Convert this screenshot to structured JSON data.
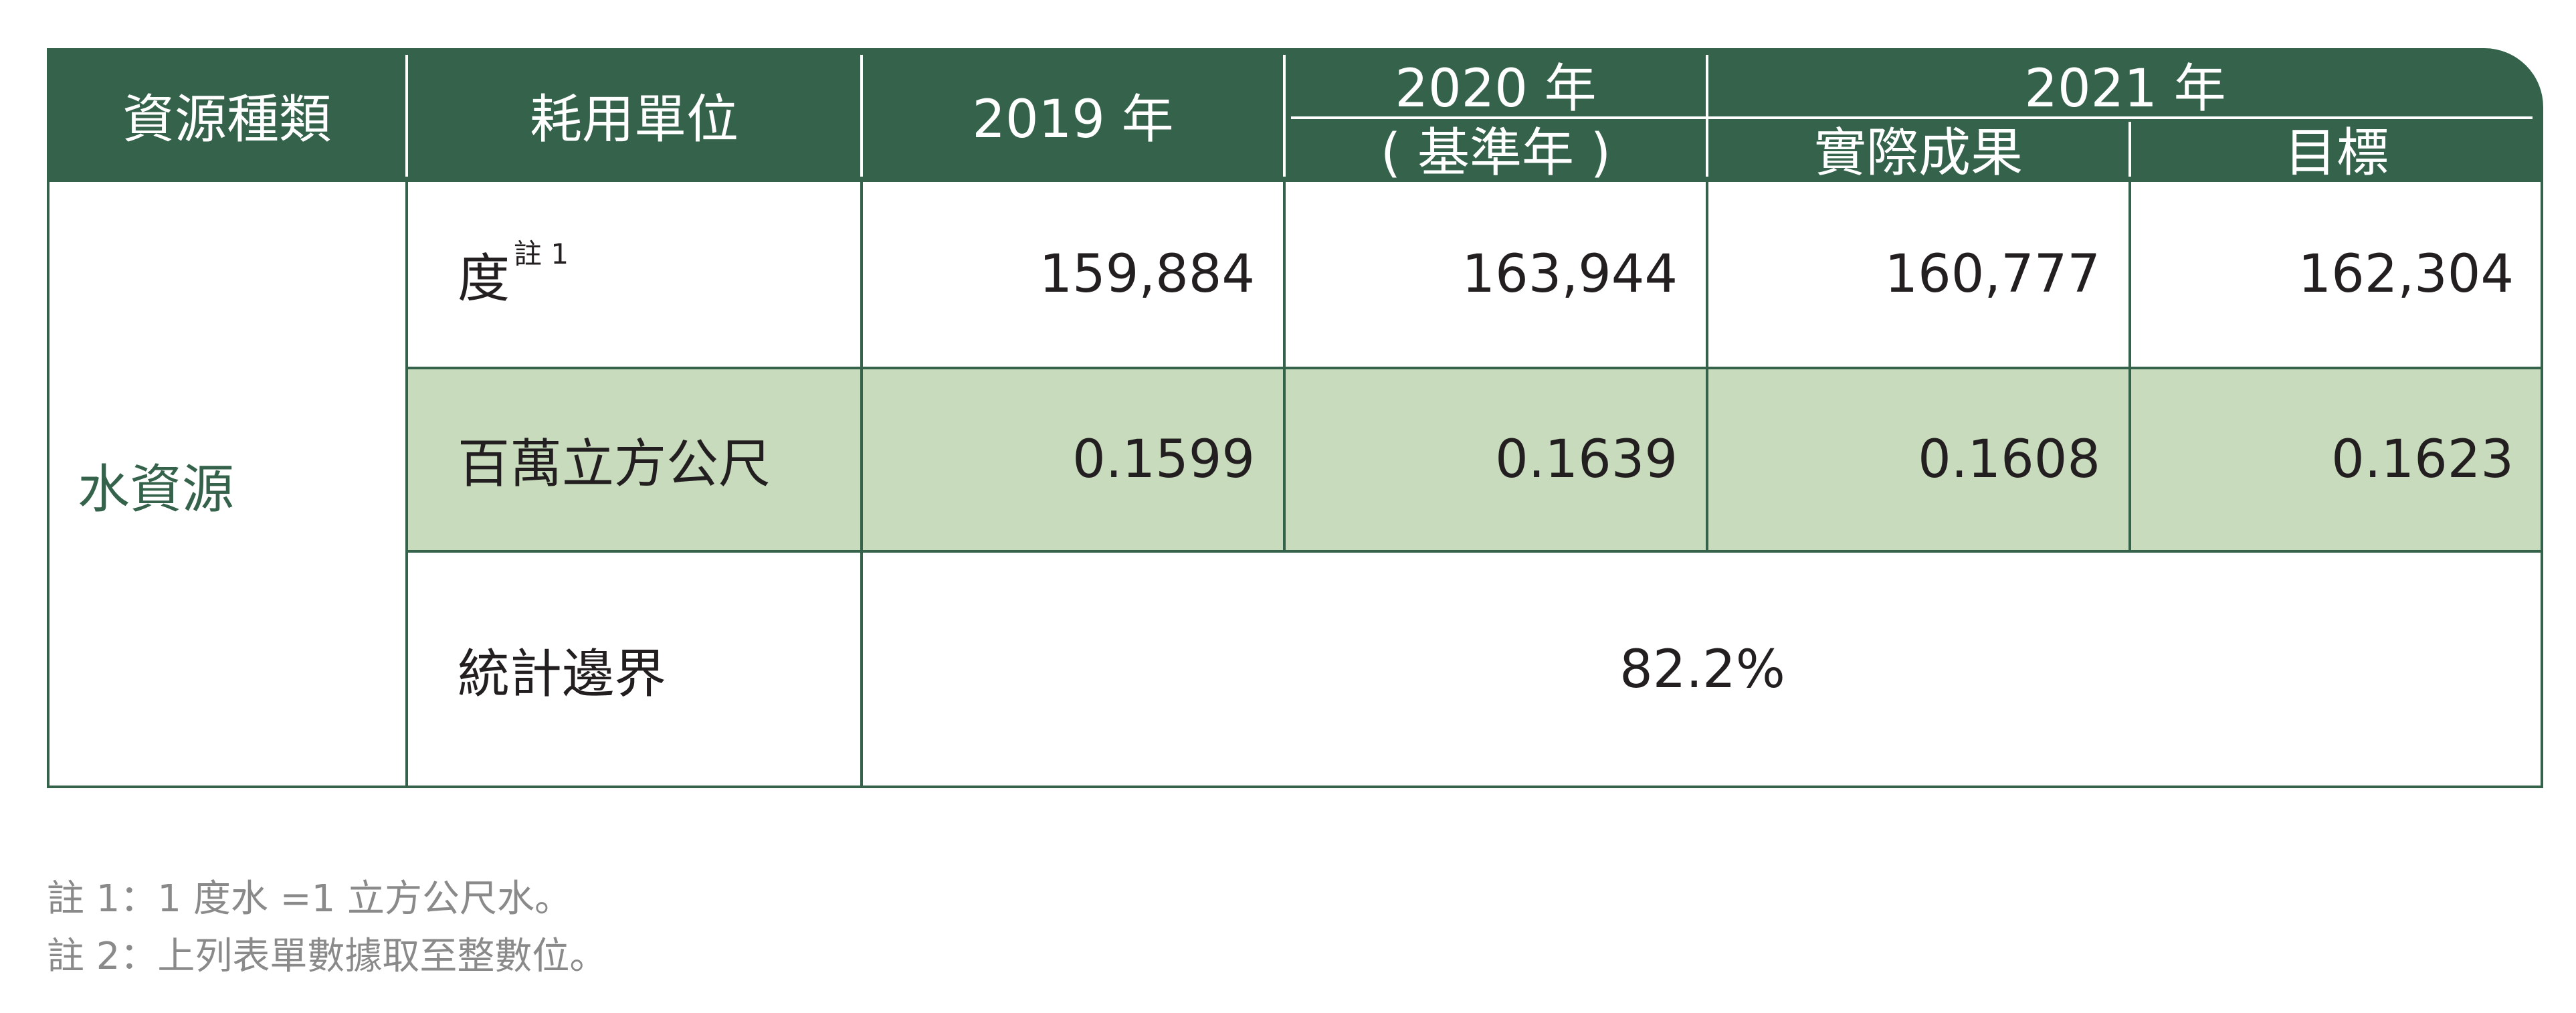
{
  "table": {
    "headers": {
      "category": "資源種類",
      "unit": "耗用單位",
      "y2019": "2019 年",
      "y2020": "2020 年",
      "y2020_sub": "( 基準年 )",
      "y2021": "2021 年",
      "actual": "實際成果",
      "target": "目標"
    },
    "category": "水資源",
    "rows": [
      {
        "unit": "度",
        "unit_note": "註 1",
        "y2019": "159,884",
        "y2020": "163,944",
        "actual": "160,777",
        "target": "162,304"
      },
      {
        "unit": "百萬立方公尺",
        "y2019": "0.1599",
        "y2020": "0.1639",
        "actual": "0.1608",
        "target": "0.1623"
      }
    ],
    "boundary": {
      "label": "統計邊界",
      "value": "82.2%"
    },
    "band_color": "#c8dcbd",
    "header_color": "#35624b"
  },
  "notes": [
    "註 1：1 度水 =1 立方公尺水。",
    "註 2：上列表單數據取至整數位。"
  ]
}
